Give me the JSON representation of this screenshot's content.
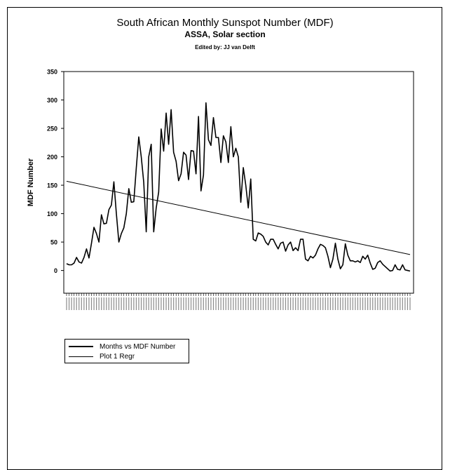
{
  "page": {
    "title": "South African Monthly Sunspot Number (MDF)",
    "subtitle": "ASSA, Solar section",
    "editor": "Edited by:  JJ van Delft"
  },
  "chart_data": {
    "type": "line",
    "ylabel": "MDF Number",
    "ylim": [
      -40,
      350
    ],
    "yticks": [
      0,
      50,
      100,
      150,
      200,
      250,
      300,
      350
    ],
    "x_tick_labels_legible": false,
    "series": [
      {
        "name": "Months vs MDF Number",
        "style": "thick",
        "values": [
          12,
          10,
          10,
          13,
          23,
          15,
          13,
          23,
          38,
          22,
          48,
          76,
          65,
          50,
          98,
          82,
          83,
          107,
          115,
          156,
          100,
          50,
          65,
          75,
          100,
          144,
          120,
          121,
          180,
          235,
          200,
          155,
          68,
          200,
          222,
          68,
          110,
          138,
          249,
          210,
          277,
          222,
          283,
          208,
          192,
          158,
          170,
          208,
          203,
          160,
          211,
          210,
          170,
          271,
          140,
          168,
          295,
          230,
          220,
          269,
          234,
          234,
          190,
          237,
          226,
          190,
          253,
          200,
          215,
          200,
          120,
          181,
          150,
          110,
          161,
          55,
          52,
          66,
          64,
          60,
          50,
          45,
          55,
          55,
          46,
          38,
          48,
          50,
          34,
          45,
          50,
          35,
          40,
          35,
          55,
          55,
          20,
          17,
          25,
          22,
          27,
          38,
          46,
          44,
          40,
          25,
          5,
          20,
          48,
          20,
          3,
          10,
          47,
          27,
          17,
          17,
          15,
          17,
          14,
          25,
          20,
          27,
          13,
          2,
          4,
          14,
          17,
          11,
          7,
          3,
          -1,
          0,
          10,
          2,
          1,
          10,
          1,
          0,
          -1
        ]
      },
      {
        "name": "Plot 1 Regr",
        "style": "thin",
        "regression": {
          "start": 157,
          "end": 28
        }
      }
    ],
    "legend": {
      "position": "bottom-left"
    }
  },
  "colors": {
    "line": "#000000",
    "background": "#ffffff"
  }
}
